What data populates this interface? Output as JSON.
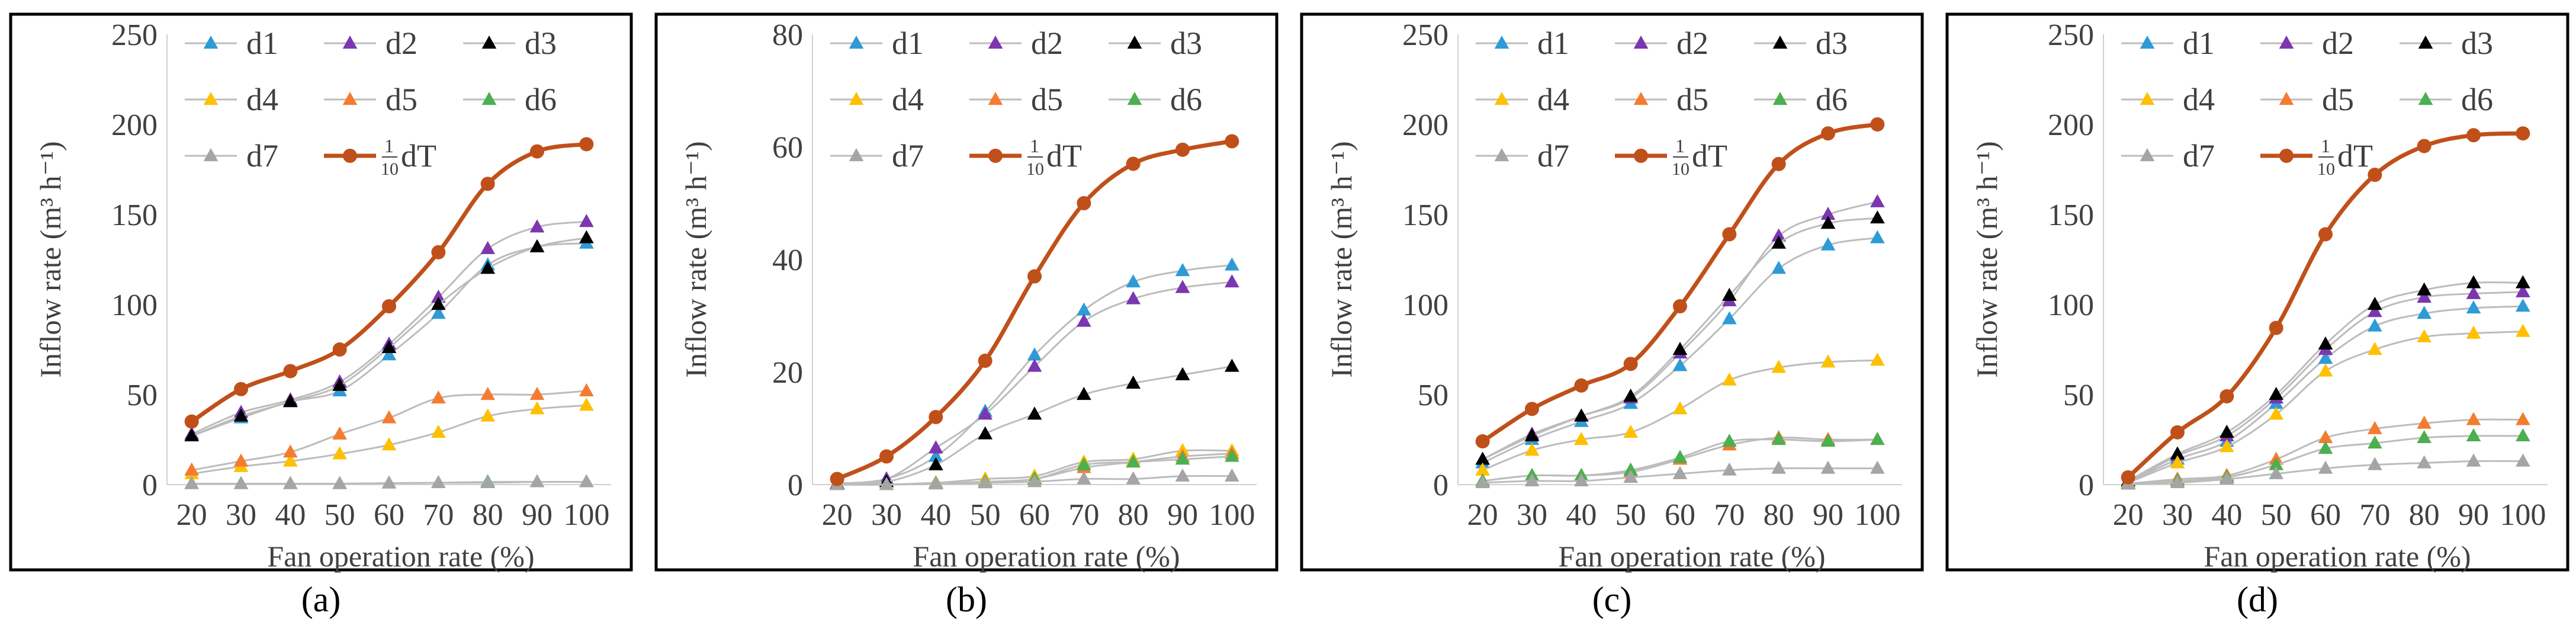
{
  "figure": {
    "panels": [
      {
        "label": "(a)"
      },
      {
        "label": "(b)"
      },
      {
        "label": "(c)"
      },
      {
        "label": "(d)"
      }
    ]
  },
  "colors": {
    "d1": "#2e9bd6",
    "d2": "#7b36b0",
    "d3": "#000000",
    "d4": "#ffc000",
    "d5": "#f47c30",
    "d6": "#4caf50",
    "d7": "#a5a5a5",
    "dT": "#c0501a",
    "line_gray": "#bcbcbc",
    "frame": "#000000"
  },
  "chart_data": [
    {
      "type": "line",
      "xlabel": "Fan operation rate (%)",
      "ylabel": "Inflow rate (m³ h⁻¹)",
      "ylim": [
        0,
        250
      ],
      "yticks": [
        "0",
        "50",
        "100",
        "150",
        "200",
        "250"
      ],
      "x": [
        20,
        30,
        40,
        50,
        60,
        70,
        80,
        90,
        100
      ],
      "xticks": [
        "20",
        "30",
        "40",
        "50",
        "60",
        "70",
        "80",
        "90",
        "100"
      ],
      "legend_position": "top-left",
      "series": [
        {
          "name": "d1",
          "values": [
            27,
            37,
            46,
            52,
            72,
            95,
            122,
            132,
            134
          ]
        },
        {
          "name": "d2",
          "values": [
            28,
            40,
            47,
            57,
            78,
            104,
            131,
            143,
            146
          ]
        },
        {
          "name": "d3",
          "values": [
            27,
            38,
            46,
            55,
            76,
            100,
            120,
            132,
            137
          ]
        },
        {
          "name": "d4",
          "values": [
            6,
            10,
            13,
            17,
            22,
            29,
            38,
            42,
            44
          ]
        },
        {
          "name": "d5",
          "values": [
            8,
            13,
            18,
            28,
            37,
            48,
            50,
            50,
            52
          ]
        },
        {
          "name": "d6",
          "values": [
            0.5,
            0.5,
            0.5,
            0.5,
            0.8,
            1,
            1.5,
            1.5,
            1.5
          ]
        },
        {
          "name": "d7",
          "values": [
            0.5,
            0.5,
            0.5,
            0.5,
            0.8,
            1,
            1,
            1.5,
            1.5
          ]
        },
        {
          "name": "dT",
          "label_prefix": "1",
          "label_den": "10",
          "label_suffix": "dT",
          "values": [
            35,
            53,
            63,
            75,
            99,
            129,
            167,
            185,
            189
          ]
        }
      ]
    },
    {
      "type": "line",
      "xlabel": "Fan operation rate (%)",
      "ylabel": "Inflow rate (m³ h⁻¹)",
      "ylim": [
        0,
        80
      ],
      "yticks": [
        "0",
        "20",
        "40",
        "60",
        "80"
      ],
      "x": [
        20,
        30,
        40,
        50,
        60,
        70,
        80,
        90,
        100
      ],
      "xticks": [
        "20",
        "30",
        "40",
        "50",
        "60",
        "70",
        "80",
        "90",
        "100"
      ],
      "legend_position": "top-left",
      "series": [
        {
          "name": "d1",
          "values": [
            0.2,
            1,
            5,
            13,
            23,
            31,
            36,
            38,
            39
          ]
        },
        {
          "name": "d2",
          "values": [
            0.2,
            1,
            6.5,
            12.5,
            21,
            29,
            33,
            35,
            36
          ]
        },
        {
          "name": "d3",
          "values": [
            0.1,
            0.5,
            3.5,
            9,
            12.5,
            16,
            18,
            19.5,
            21
          ]
        },
        {
          "name": "d4",
          "values": [
            0,
            0,
            0.3,
            1,
            1.5,
            4,
            4.5,
            6,
            6
          ]
        },
        {
          "name": "d5",
          "values": [
            0,
            0,
            0.3,
            0.5,
            1,
            3,
            4,
            5,
            5.5
          ]
        },
        {
          "name": "d6",
          "values": [
            0,
            0,
            0.2,
            0.5,
            1,
            3.5,
            4,
            4.5,
            5
          ]
        },
        {
          "name": "d7",
          "values": [
            0,
            0,
            0.1,
            0.3,
            0.5,
            1,
            1,
            1.5,
            1.5
          ]
        },
        {
          "name": "dT",
          "label_prefix": "1",
          "label_den": "10",
          "label_suffix": "dT",
          "values": [
            1,
            5,
            12,
            22,
            37,
            50,
            57,
            59.5,
            61
          ]
        }
      ]
    },
    {
      "type": "line",
      "xlabel": "Fan operation rate (%)",
      "ylabel": "Inflow rate (m³ h⁻¹)",
      "ylim": [
        0,
        250
      ],
      "yticks": [
        "0",
        "50",
        "100",
        "150",
        "200",
        "250"
      ],
      "x": [
        20,
        30,
        40,
        50,
        60,
        70,
        80,
        90,
        100
      ],
      "xticks": [
        "20",
        "30",
        "40",
        "50",
        "60",
        "70",
        "80",
        "90",
        "100"
      ],
      "legend_position": "top-left",
      "series": [
        {
          "name": "d1",
          "values": [
            12,
            25,
            35,
            45,
            66,
            92,
            120,
            133,
            137
          ]
        },
        {
          "name": "d2",
          "values": [
            14,
            28,
            38,
            48,
            73,
            102,
            138,
            150,
            157
          ]
        },
        {
          "name": "d3",
          "values": [
            14,
            27,
            38,
            49,
            75,
            105,
            134,
            145,
            148
          ]
        },
        {
          "name": "d4",
          "values": [
            8,
            19,
            25,
            29,
            42,
            58,
            65,
            68,
            69
          ]
        },
        {
          "name": "d5",
          "values": [
            2,
            5,
            5,
            7,
            14,
            22,
            26,
            25,
            25
          ]
        },
        {
          "name": "d6",
          "values": [
            2,
            5,
            5,
            8,
            15,
            24,
            25,
            24,
            25
          ]
        },
        {
          "name": "d7",
          "values": [
            1,
            2,
            2,
            4,
            6,
            8,
            9,
            9,
            9
          ]
        },
        {
          "name": "dT",
          "label_prefix": "1",
          "label_den": "10",
          "label_suffix": "dT",
          "values": [
            24,
            42,
            55,
            67,
            99,
            139,
            178,
            195,
            200
          ]
        }
      ]
    },
    {
      "type": "line",
      "xlabel": "Fan operation rate (%)",
      "ylabel": "Inflow rate (m³ h⁻¹)",
      "ylim": [
        0,
        250
      ],
      "yticks": [
        "0",
        "50",
        "100",
        "150",
        "200",
        "250"
      ],
      "x": [
        20,
        30,
        40,
        50,
        60,
        70,
        80,
        90,
        100
      ],
      "xticks": [
        "20",
        "30",
        "40",
        "50",
        "60",
        "70",
        "80",
        "90",
        "100"
      ],
      "legend_position": "top-left",
      "series": [
        {
          "name": "d1",
          "values": [
            1,
            14,
            24,
            45,
            70,
            88,
            95,
            98,
            99
          ]
        },
        {
          "name": "d2",
          "values": [
            1,
            16,
            27,
            48,
            75,
            96,
            104,
            106,
            107
          ]
        },
        {
          "name": "d3",
          "values": [
            2,
            17,
            29,
            50,
            78,
            100,
            108,
            112,
            112
          ]
        },
        {
          "name": "d4",
          "values": [
            1,
            12,
            21,
            39,
            63,
            75,
            82,
            84,
            85
          ]
        },
        {
          "name": "d5",
          "values": [
            0.5,
            3,
            5,
            14,
            26,
            31,
            34,
            36,
            36
          ]
        },
        {
          "name": "d6",
          "values": [
            0.5,
            2,
            4,
            11,
            20,
            23,
            26,
            27,
            27
          ]
        },
        {
          "name": "d7",
          "values": [
            0.2,
            1,
            3,
            6,
            9,
            11,
            12,
            13,
            13
          ]
        },
        {
          "name": "dT",
          "label_prefix": "1",
          "label_den": "10",
          "label_suffix": "dT",
          "values": [
            4,
            29,
            49,
            87,
            139,
            172,
            188,
            194,
            195
          ]
        }
      ]
    }
  ]
}
